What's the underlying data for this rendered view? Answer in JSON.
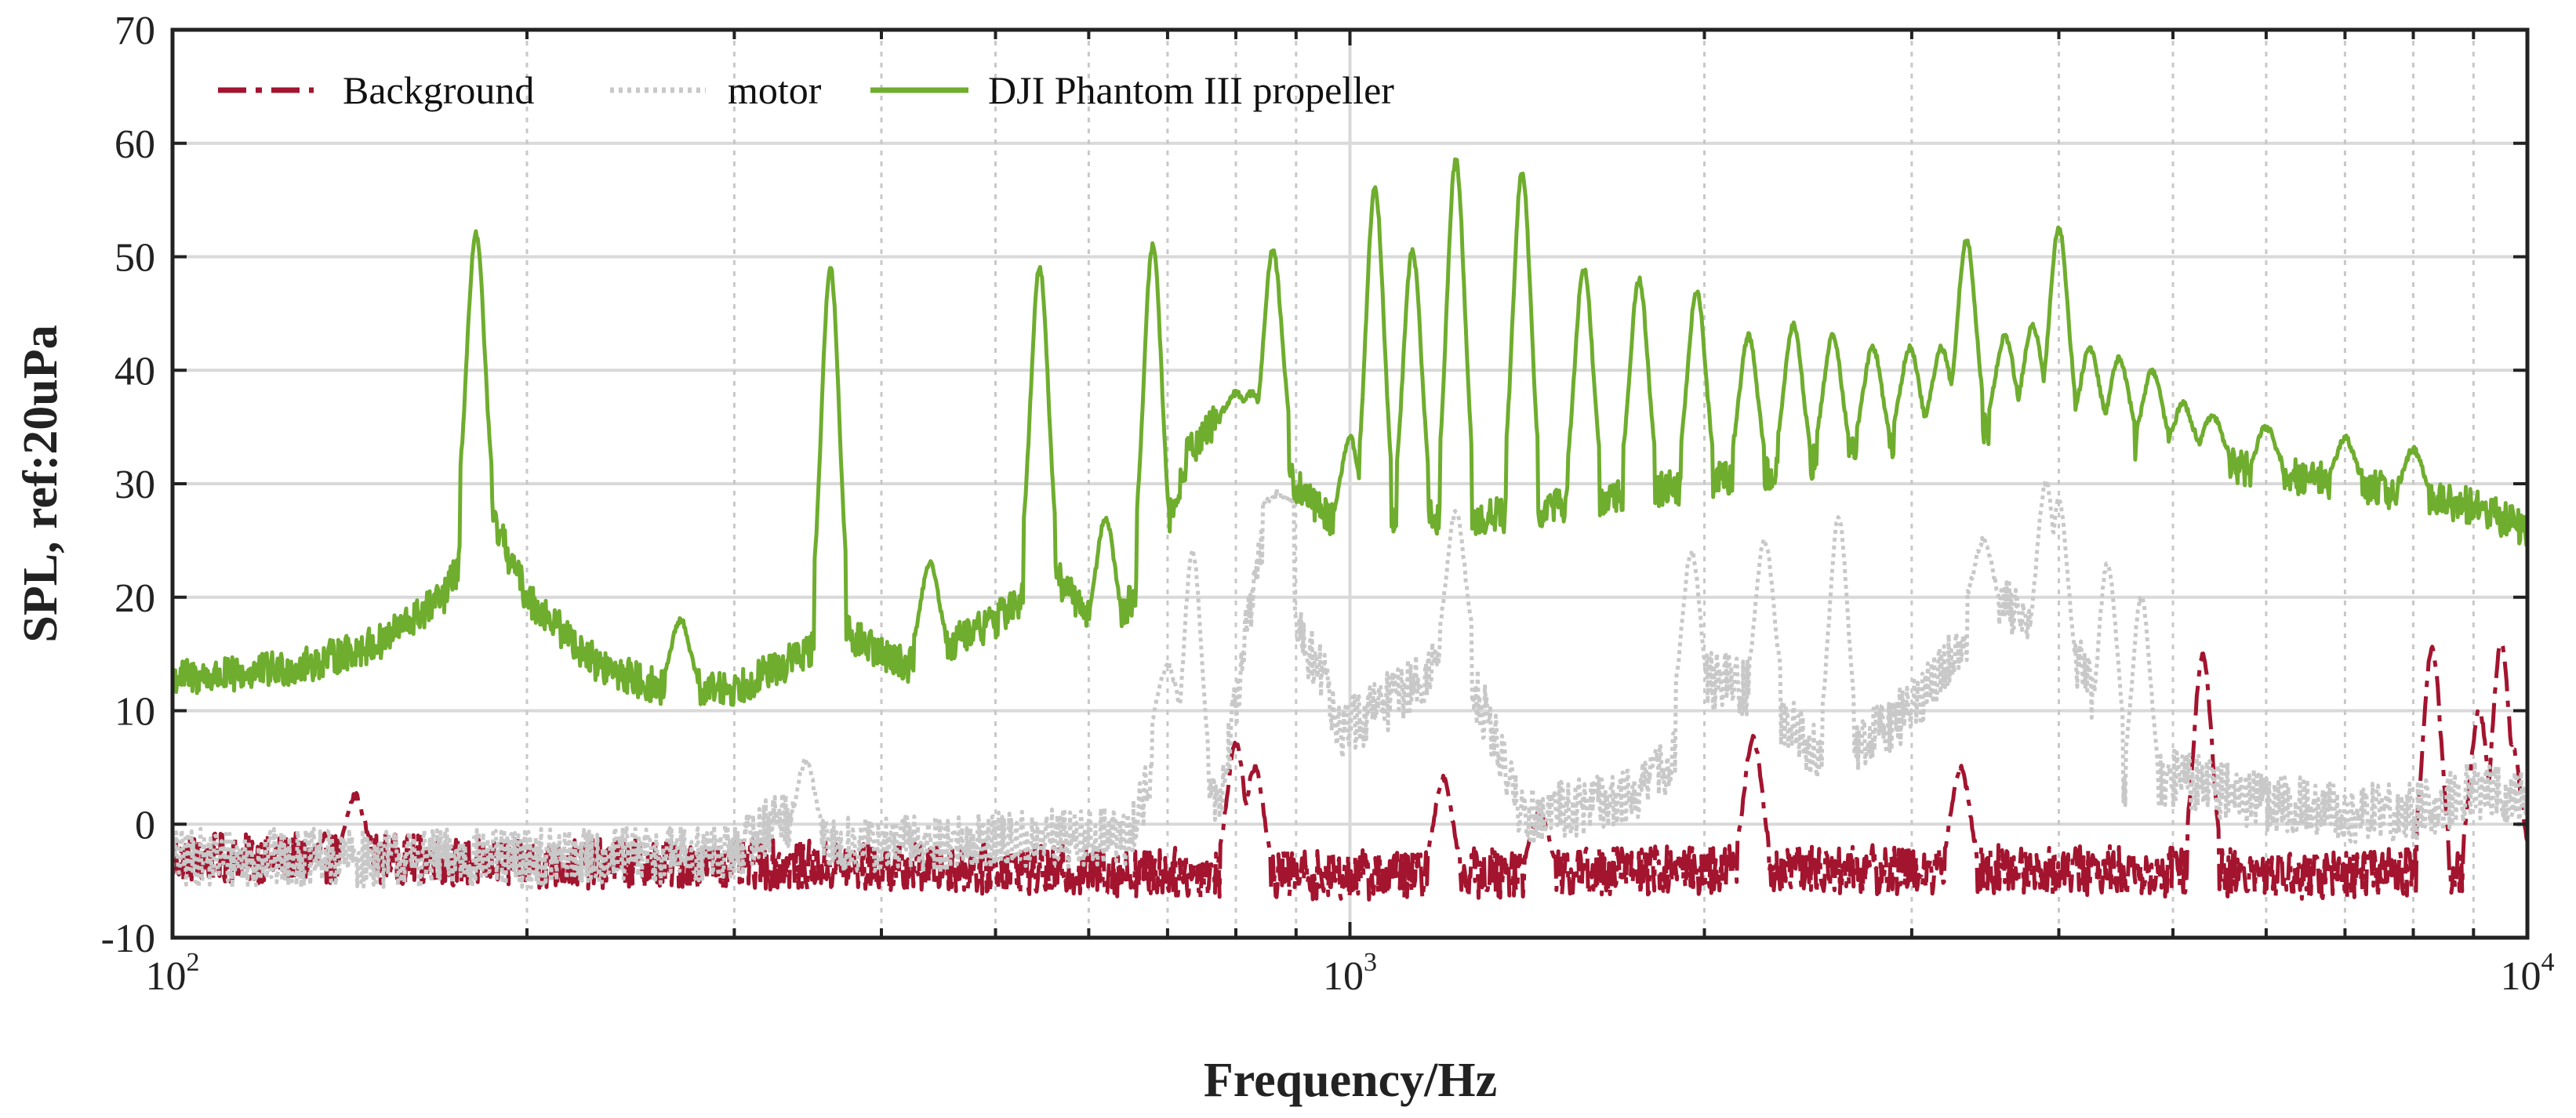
{
  "chart_data": {
    "type": "line",
    "title": "",
    "xlabel": "Frequency/Hz",
    "ylabel": "SPL, ref:20uPa",
    "xscale": "log",
    "xlim": [
      100,
      10000
    ],
    "ylim": [
      -10,
      70
    ],
    "grid": true,
    "legend_position": "top-left",
    "x_ticks": [
      {
        "base": "10",
        "exp": "2",
        "value": 100
      },
      {
        "base": "10",
        "exp": "3",
        "value": 1000
      },
      {
        "base": "10",
        "exp": "4",
        "value": 10000
      }
    ],
    "y_ticks": [
      "-10",
      "0",
      "10",
      "20",
      "30",
      "40",
      "50",
      "60",
      "70"
    ],
    "colors": {
      "background": "#a3142e",
      "motor": "#c8c8c8",
      "propeller": "#6fad2e"
    },
    "series": [
      {
        "name": "Background",
        "style": "dash-dot",
        "baseline": [
          [
            100,
            -3
          ],
          [
            150,
            -3
          ],
          [
            200,
            -3.5
          ],
          [
            300,
            -3.5
          ],
          [
            500,
            -4
          ],
          [
            1000,
            -4.5
          ],
          [
            2000,
            -4
          ],
          [
            4000,
            -4
          ],
          [
            7000,
            -4.5
          ],
          [
            10000,
            -4
          ]
        ],
        "noise": 2.2,
        "peaks": [
          [
            143,
            2.5
          ],
          [
            800,
            7
          ],
          [
            830,
            5
          ],
          [
            1200,
            4
          ],
          [
            1450,
            1
          ],
          [
            2200,
            7.5
          ],
          [
            3300,
            5
          ],
          [
            5300,
            15
          ],
          [
            8300,
            15.5
          ],
          [
            9100,
            10
          ],
          [
            9500,
            16
          ],
          [
            9700,
            7
          ]
        ]
      },
      {
        "name": "motor",
        "style": "dotted",
        "baseline": [
          [
            100,
            -3
          ],
          [
            200,
            -3
          ],
          [
            300,
            -2.5
          ],
          [
            330,
            1
          ],
          [
            350,
            -2
          ],
          [
            500,
            -1.5
          ],
          [
            650,
            -1
          ],
          [
            700,
            8
          ],
          [
            720,
            2
          ],
          [
            780,
            3
          ],
          [
            830,
            22
          ],
          [
            870,
            28
          ],
          [
            900,
            17
          ],
          [
            950,
            13
          ],
          [
            980,
            8
          ],
          [
            1050,
            10
          ],
          [
            1150,
            13
          ],
          [
            1230,
            15
          ],
          [
            1300,
            10
          ],
          [
            1400,
            1
          ],
          [
            1700,
            2
          ],
          [
            1900,
            6
          ],
          [
            2000,
            13
          ],
          [
            2200,
            12
          ],
          [
            2500,
            6
          ],
          [
            2800,
            8
          ],
          [
            3000,
            10
          ],
          [
            3300,
            16
          ],
          [
            3500,
            20
          ],
          [
            3800,
            17
          ],
          [
            4000,
            12
          ],
          [
            4200,
            14
          ],
          [
            4500,
            2
          ],
          [
            5000,
            4
          ],
          [
            6000,
            2
          ],
          [
            7000,
            1
          ],
          [
            8000,
            1
          ],
          [
            9000,
            3
          ],
          [
            10000,
            2
          ]
        ],
        "noise": 2.6,
        "peaks": [
          [
            345,
            5.5
          ],
          [
            700,
            14
          ],
          [
            735,
            24
          ],
          [
            870,
            29
          ],
          [
            1230,
            27.5
          ],
          [
            1950,
            24
          ],
          [
            2250,
            25
          ],
          [
            2600,
            27
          ],
          [
            3450,
            25
          ],
          [
            3900,
            30
          ],
          [
            4000,
            28.5
          ],
          [
            4400,
            23
          ],
          [
            4700,
            20
          ]
        ]
      },
      {
        "name": "DJI Phantom III propeller",
        "style": "solid",
        "baseline": [
          [
            100,
            13
          ],
          [
            110,
            13
          ],
          [
            130,
            14
          ],
          [
            150,
            16
          ],
          [
            170,
            20
          ],
          [
            185,
            28
          ],
          [
            200,
            20
          ],
          [
            230,
            14
          ],
          [
            260,
            12
          ],
          [
            300,
            12
          ],
          [
            330,
            14
          ],
          [
            370,
            17
          ],
          [
            420,
            14
          ],
          [
            500,
            18
          ],
          [
            560,
            22
          ],
          [
            620,
            17
          ],
          [
            680,
            22
          ],
          [
            730,
            33
          ],
          [
            780,
            36
          ],
          [
            830,
            35
          ],
          [
            900,
            30
          ],
          [
            960,
            27
          ],
          [
            1000,
            26
          ],
          [
            1100,
            27
          ],
          [
            1300,
            27
          ],
          [
            1500,
            28
          ],
          [
            2000,
            30
          ],
          [
            2500,
            32
          ],
          [
            3000,
            34
          ],
          [
            3500,
            35
          ],
          [
            4000,
            35
          ],
          [
            5000,
            33
          ],
          [
            6000,
            31
          ],
          [
            7000,
            30
          ],
          [
            8000,
            29
          ],
          [
            9000,
            28
          ],
          [
            10000,
            26
          ]
        ],
        "noise": 1.6,
        "peaks": [
          [
            181,
            52
          ],
          [
            270,
            18
          ],
          [
            362,
            49
          ],
          [
            440,
            23
          ],
          [
            545,
            49
          ],
          [
            620,
            27
          ],
          [
            680,
            51
          ],
          [
            800,
            38
          ],
          [
            825,
            38
          ],
          [
            860,
            50.5
          ],
          [
            1000,
            34
          ],
          [
            1050,
            56
          ],
          [
            1130,
            50.5
          ],
          [
            1230,
            58.5
          ],
          [
            1400,
            57.5
          ],
          [
            1580,
            49
          ],
          [
            1760,
            48
          ],
          [
            1970,
            47
          ],
          [
            2180,
            43
          ],
          [
            2380,
            44
          ],
          [
            2570,
            43
          ],
          [
            2780,
            42
          ],
          [
            2990,
            42
          ],
          [
            3180,
            42
          ],
          [
            3340,
            51.5
          ],
          [
            3600,
            43
          ],
          [
            3800,
            44
          ],
          [
            4000,
            52.5
          ],
          [
            4250,
            42
          ],
          [
            4500,
            41
          ],
          [
            4800,
            40
          ],
          [
            5100,
            37
          ],
          [
            5400,
            36
          ],
          [
            6000,
            35
          ],
          [
            7000,
            34
          ],
          [
            8000,
            33
          ]
        ]
      }
    ]
  }
}
